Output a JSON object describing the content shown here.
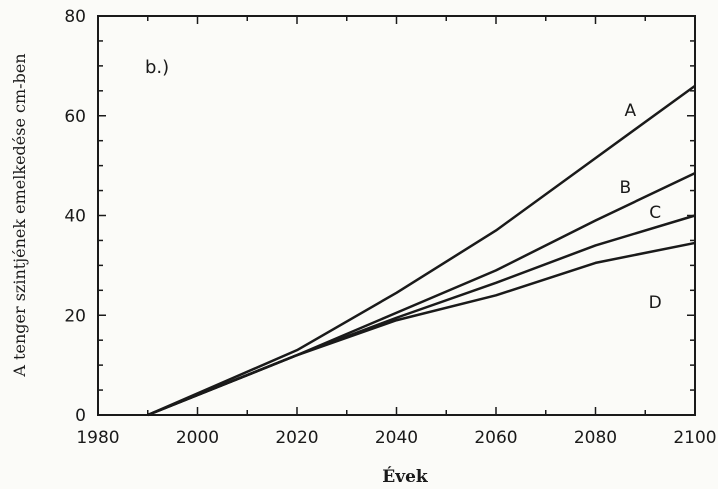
{
  "chart_data": {
    "type": "line",
    "panel_label": "b.)",
    "xlabel": "Évek",
    "ylabel": "A tenger szintjének emelkedése cm-ben",
    "xlim": [
      1980,
      2100
    ],
    "ylim": [
      0,
      80
    ],
    "xticks": [
      "1980",
      "2000",
      "2020",
      "2040",
      "2060",
      "2080",
      "2100"
    ],
    "yticks": [
      "0",
      "20",
      "40",
      "60",
      "80"
    ],
    "grid": false,
    "series": [
      {
        "name": "A",
        "x": [
          1990,
          2020,
          2040,
          2060,
          2080,
          2100
        ],
        "y": [
          0,
          13,
          24.5,
          37,
          51.5,
          66
        ]
      },
      {
        "name": "B",
        "x": [
          1990,
          2020,
          2040,
          2060,
          2080,
          2100
        ],
        "y": [
          0,
          12,
          20.5,
          29,
          39,
          48.5
        ]
      },
      {
        "name": "C",
        "x": [
          1990,
          2020,
          2040,
          2060,
          2080,
          2100
        ],
        "y": [
          0,
          12,
          19.5,
          26.5,
          34,
          40
        ]
      },
      {
        "name": "D",
        "x": [
          1990,
          2020,
          2040,
          2060,
          2080,
          2100
        ],
        "y": [
          0,
          12,
          19,
          24,
          30.5,
          34.5
        ]
      }
    ]
  }
}
